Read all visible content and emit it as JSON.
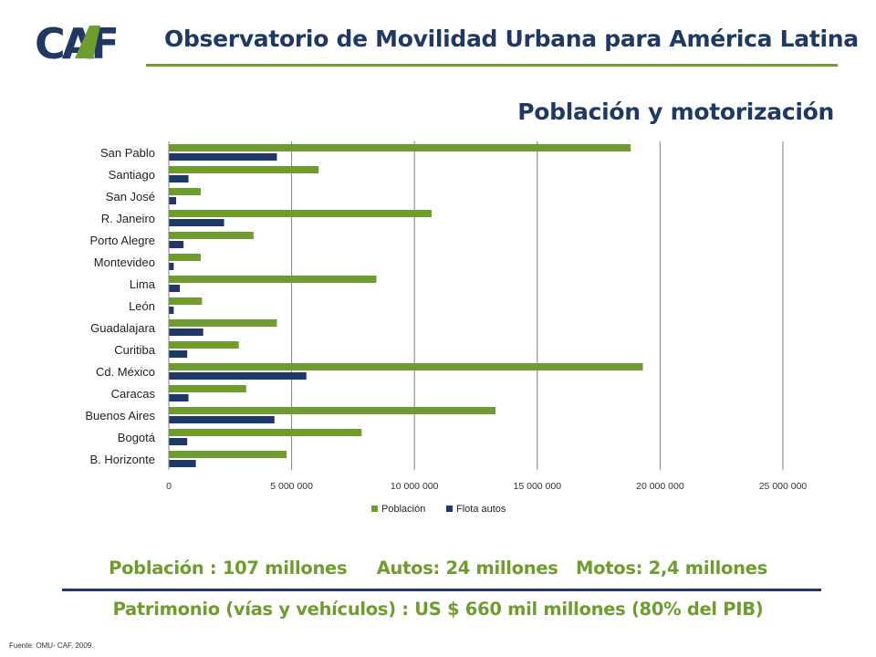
{
  "header": {
    "logo_text": "CAF",
    "title": "Observatorio de Movilidad Urbana para América Latina",
    "brand_green": "#6e9c2e",
    "brand_blue": "#1f3864"
  },
  "chart_data": {
    "type": "bar",
    "orientation": "horizontal",
    "title": "Población y motorización",
    "categories": [
      "San Pablo",
      "Santiago",
      "San José",
      "R. Janeiro",
      "Porto Alegre",
      "Montevideo",
      "Lima",
      "León",
      "Guadalajara",
      "Curitiba",
      "Cd. México",
      "Caracas",
      "Buenos Aires",
      "Bogotá",
      "B. Horizonte"
    ],
    "series": [
      {
        "name": "Población",
        "color": "#6e9c2e",
        "values": [
          18800000,
          6100000,
          1300000,
          10700000,
          3450000,
          1300000,
          8450000,
          1350000,
          4400000,
          2850000,
          19300000,
          3150000,
          13300000,
          7850000,
          4800000
        ]
      },
      {
        "name": "Flota autos",
        "color": "#1f3864",
        "values": [
          4400000,
          800000,
          300000,
          2250000,
          600000,
          200000,
          450000,
          200000,
          1400000,
          750000,
          5600000,
          800000,
          4300000,
          750000,
          1100000
        ]
      }
    ],
    "x_ticks": [
      0,
      5000000,
      10000000,
      15000000,
      20000000,
      25000000
    ],
    "x_tick_labels": [
      "0",
      "5 000 000",
      "10 000 000",
      "15 000 000",
      "20 000 000",
      "25 000 000"
    ],
    "xlim": [
      0,
      25000000
    ],
    "grid": true,
    "legend_position": "bottom"
  },
  "summary": {
    "line1": "Población : 107 millones     Autos: 24 millones   Motos: 2,4 millones",
    "line2": "Patrimonio (vías y vehículos) : US $ 660 mil millones (80% del PIB)"
  },
  "source": "Fuente: OMU- CAF, 2009."
}
